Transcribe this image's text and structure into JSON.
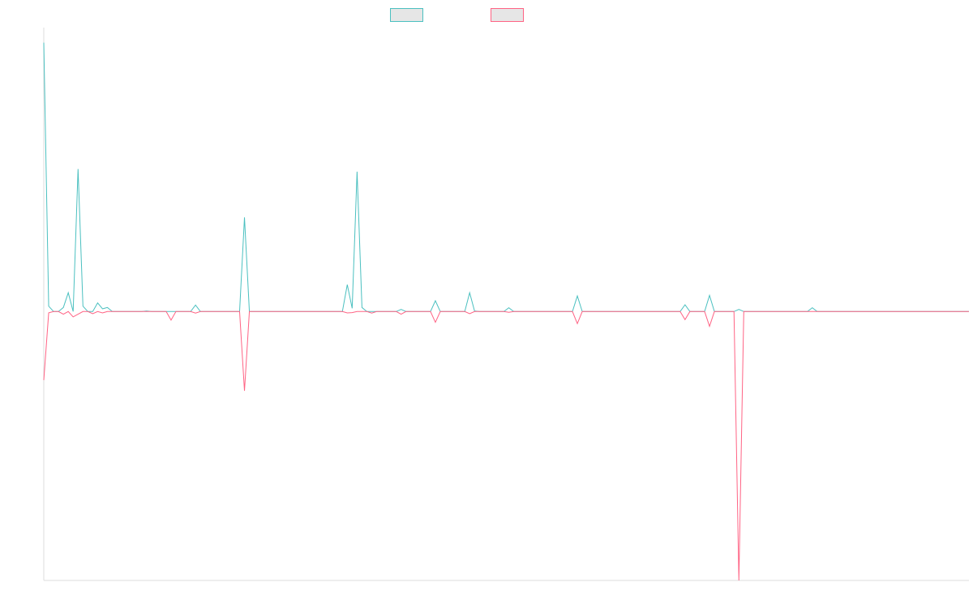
{
  "chart_data": {
    "type": "line",
    "title": "",
    "xlabel": "",
    "ylabel": "",
    "ylim": [
      -1,
      1.05
    ],
    "grid": false,
    "legend_position": "top-center",
    "point_count": 190,
    "baseline": 0,
    "series": [
      {
        "key": "positive",
        "color": "#4bc0c0",
        "legend_fill": "#e6e6e6",
        "spikes": [
          {
            "i": 0,
            "v": 1.0
          },
          {
            "i": 1,
            "v": 0.02
          },
          {
            "i": 2,
            "v": 0.0
          },
          {
            "i": 3,
            "v": 0.0
          },
          {
            "i": 4,
            "v": 0.015
          },
          {
            "i": 5,
            "v": 0.07
          },
          {
            "i": 7,
            "v": 0.53
          },
          {
            "i": 8,
            "v": 0.02
          },
          {
            "i": 9,
            "v": 0.0
          },
          {
            "i": 11,
            "v": 0.032
          },
          {
            "i": 12,
            "v": 0.01
          },
          {
            "i": 13,
            "v": 0.015
          },
          {
            "i": 21,
            "v": 0.002
          },
          {
            "i": 31,
            "v": 0.024
          },
          {
            "i": 40,
            "v": 0.0
          },
          {
            "i": 41,
            "v": 0.35
          },
          {
            "i": 42,
            "v": 0.0
          },
          {
            "i": 61,
            "v": 0.0
          },
          {
            "i": 62,
            "v": 0.1
          },
          {
            "i": 63,
            "v": 0.012
          },
          {
            "i": 64,
            "v": 0.52
          },
          {
            "i": 65,
            "v": 0.015
          },
          {
            "i": 66,
            "v": 0.0
          },
          {
            "i": 73,
            "v": 0.008
          },
          {
            "i": 80,
            "v": 0.04
          },
          {
            "i": 87,
            "v": 0.07
          },
          {
            "i": 88,
            "v": 0.002
          },
          {
            "i": 95,
            "v": 0.014
          },
          {
            "i": 109,
            "v": 0.058
          },
          {
            "i": 110,
            "v": 0.0
          },
          {
            "i": 131,
            "v": 0.025
          },
          {
            "i": 136,
            "v": 0.06
          },
          {
            "i": 142,
            "v": 0.008
          },
          {
            "i": 157,
            "v": 0.014
          }
        ]
      },
      {
        "key": "negative",
        "color": "#ff6384",
        "legend_fill": "#e6e6e6",
        "spikes": [
          {
            "i": 0,
            "v": -0.255
          },
          {
            "i": 1,
            "v": -0.005
          },
          {
            "i": 2,
            "v": 0.0
          },
          {
            "i": 3,
            "v": 0.0
          },
          {
            "i": 4,
            "v": -0.01
          },
          {
            "i": 5,
            "v": 0.0
          },
          {
            "i": 6,
            "v": -0.02
          },
          {
            "i": 7,
            "v": -0.01
          },
          {
            "i": 8,
            "v": 0.0
          },
          {
            "i": 10,
            "v": -0.008
          },
          {
            "i": 11,
            "v": 0.0
          },
          {
            "i": 12,
            "v": -0.005
          },
          {
            "i": 26,
            "v": -0.032
          },
          {
            "i": 27,
            "v": 0.0
          },
          {
            "i": 31,
            "v": -0.006
          },
          {
            "i": 40,
            "v": 0.0
          },
          {
            "i": 41,
            "v": -0.295
          },
          {
            "i": 42,
            "v": 0.0
          },
          {
            "i": 61,
            "v": 0.0
          },
          {
            "i": 62,
            "v": -0.005
          },
          {
            "i": 63,
            "v": -0.004
          },
          {
            "i": 65,
            "v": 0.0
          },
          {
            "i": 67,
            "v": -0.006
          },
          {
            "i": 73,
            "v": -0.01
          },
          {
            "i": 80,
            "v": -0.04
          },
          {
            "i": 87,
            "v": -0.008
          },
          {
            "i": 88,
            "v": 0.0
          },
          {
            "i": 95,
            "v": -0.003
          },
          {
            "i": 109,
            "v": -0.045
          },
          {
            "i": 110,
            "v": 0.0
          },
          {
            "i": 131,
            "v": -0.03
          },
          {
            "i": 136,
            "v": -0.055
          },
          {
            "i": 142,
            "v": -1.0
          },
          {
            "i": 143,
            "v": 0.0
          }
        ]
      }
    ]
  }
}
